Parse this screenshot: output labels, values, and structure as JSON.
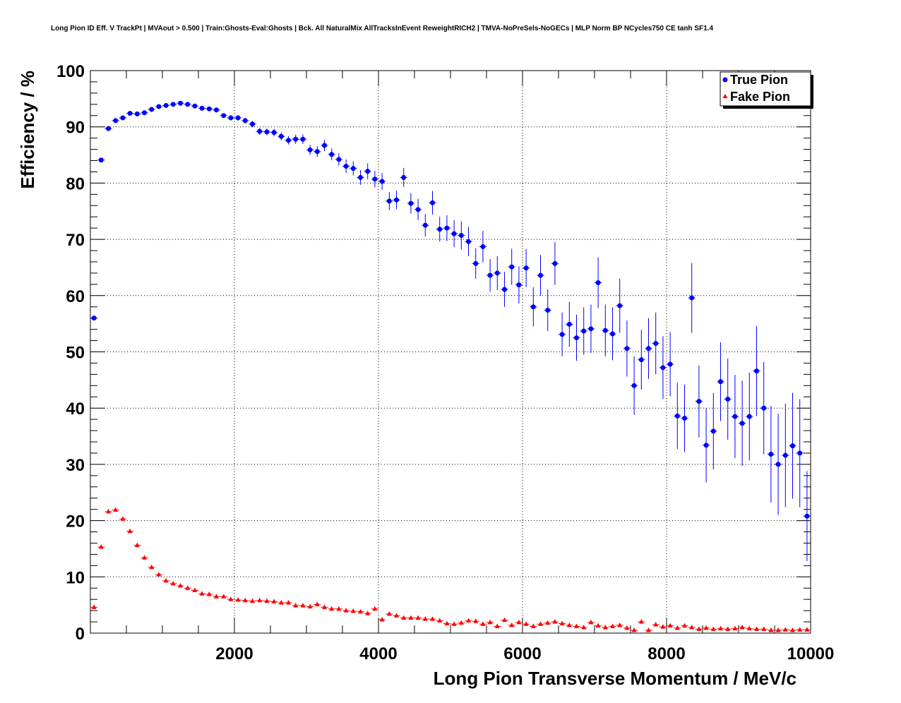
{
  "chart_data": {
    "type": "scatter",
    "title": "Long Pion ID Eff. V TrackPt | MVAout > 0.500 | Train:Ghosts-Eval:Ghosts | Bck. All NaturalMix AllTracksInEvent ReweightRICH2 | TMVA-NoPreSels-NoGECs | MLP Norm BP NCycles750 CE tanh SF1.4",
    "xlabel": "Long Pion Transverse Momentum / MeV/c",
    "ylabel": "Efficiency / %",
    "xlim": [
      0,
      10000
    ],
    "ylim": [
      0,
      100
    ],
    "grid": true,
    "legend_position": "top-right",
    "x_ticks": [
      2000,
      4000,
      6000,
      8000,
      10000
    ],
    "x_tick_labels": [
      "2000",
      "4000",
      "6000",
      "8000",
      "10000"
    ],
    "y_ticks": [
      0,
      10,
      20,
      30,
      40,
      50,
      60,
      70,
      80,
      90,
      100
    ],
    "y_tick_labels": [
      "0",
      "10",
      "20",
      "30",
      "40",
      "50",
      "60",
      "70",
      "80",
      "90",
      "100"
    ],
    "bin_width": 100,
    "series": [
      {
        "name": "True Pion",
        "marker": "circle",
        "color": "#0000ff",
        "x": [
          50,
          150,
          250,
          350,
          450,
          550,
          650,
          750,
          850,
          950,
          1050,
          1150,
          1250,
          1350,
          1450,
          1550,
          1650,
          1750,
          1850,
          1950,
          2050,
          2150,
          2250,
          2350,
          2450,
          2550,
          2650,
          2750,
          2850,
          2950,
          3050,
          3150,
          3250,
          3350,
          3450,
          3550,
          3650,
          3750,
          3850,
          3950,
          4050,
          4150,
          4250,
          4350,
          4450,
          4550,
          4650,
          4750,
          4850,
          4950,
          5050,
          5150,
          5250,
          5350,
          5450,
          5550,
          5650,
          5750,
          5850,
          5950,
          6050,
          6150,
          6250,
          6350,
          6450,
          6550,
          6650,
          6750,
          6850,
          6950,
          7050,
          7150,
          7250,
          7350,
          7450,
          7550,
          7650,
          7750,
          7850,
          7950,
          8050,
          8150,
          8250,
          8350,
          8450,
          8550,
          8650,
          8750,
          8850,
          8950,
          9050,
          9150,
          9250,
          9350,
          9450,
          9550,
          9650,
          9750,
          9850,
          9950
        ],
        "y": [
          56.0,
          84.1,
          89.7,
          91.1,
          91.6,
          92.4,
          92.3,
          92.5,
          93.1,
          93.6,
          93.8,
          94.0,
          94.2,
          94.0,
          93.7,
          93.3,
          93.2,
          93.0,
          92.0,
          91.6,
          91.6,
          91.1,
          90.5,
          89.2,
          89.1,
          89.0,
          88.3,
          87.6,
          87.8,
          87.8,
          85.9,
          85.6,
          86.7,
          85.1,
          84.2,
          83.0,
          82.6,
          81.0,
          82.1,
          80.7,
          80.3,
          76.8,
          77.0,
          81.0,
          76.4,
          75.3,
          72.5,
          76.5,
          71.8,
          72.0,
          71.0,
          70.7,
          69.6,
          65.7,
          68.7,
          63.6,
          64.0,
          61.1,
          65.1,
          61.9,
          64.9,
          58.0,
          63.6,
          57.4,
          65.7,
          53.1,
          54.9,
          52.5,
          53.7,
          54.1,
          62.3,
          53.8,
          53.2,
          58.2,
          50.6,
          44.0,
          48.6,
          50.6,
          51.5,
          47.2,
          47.8,
          38.6,
          38.2,
          59.6,
          41.2,
          33.4,
          35.9,
          44.7,
          41.6,
          38.5,
          37.3,
          38.5,
          46.6,
          40.0,
          31.8,
          30.0,
          31.6,
          33.3,
          32.0,
          20.8
        ],
        "err": [
          0.4,
          0.4,
          0.35,
          0.35,
          0.35,
          0.35,
          0.35,
          0.35,
          0.35,
          0.35,
          0.35,
          0.35,
          0.35,
          0.35,
          0.35,
          0.35,
          0.35,
          0.4,
          0.4,
          0.45,
          0.5,
          0.5,
          0.55,
          0.6,
          0.6,
          0.65,
          0.7,
          0.75,
          0.8,
          0.85,
          0.9,
          0.95,
          1.0,
          1.05,
          1.1,
          1.2,
          1.25,
          1.3,
          1.4,
          1.45,
          1.5,
          1.6,
          1.65,
          1.7,
          1.8,
          1.9,
          2.0,
          2.1,
          2.2,
          2.3,
          2.4,
          2.5,
          2.6,
          2.7,
          2.8,
          2.9,
          3.0,
          3.1,
          3.2,
          3.3,
          3.4,
          3.5,
          3.6,
          3.7,
          3.8,
          3.9,
          4.0,
          4.1,
          4.2,
          4.3,
          4.5,
          4.6,
          4.7,
          4.8,
          5.0,
          5.2,
          5.3,
          5.4,
          5.5,
          5.6,
          5.7,
          5.9,
          6.0,
          6.2,
          6.4,
          6.6,
          6.8,
          7.0,
          7.2,
          7.4,
          7.6,
          7.8,
          8.0,
          8.2,
          8.6,
          9.0,
          9.2,
          9.4,
          9.6,
          8.0
        ]
      },
      {
        "name": "Fake Pion",
        "marker": "triangle",
        "color": "#ff0000",
        "x": [
          50,
          150,
          250,
          350,
          450,
          550,
          650,
          750,
          850,
          950,
          1050,
          1150,
          1250,
          1350,
          1450,
          1550,
          1650,
          1750,
          1850,
          1950,
          2050,
          2150,
          2250,
          2350,
          2450,
          2550,
          2650,
          2750,
          2850,
          2950,
          3050,
          3150,
          3250,
          3350,
          3450,
          3550,
          3650,
          3750,
          3850,
          3950,
          4050,
          4150,
          4250,
          4350,
          4450,
          4550,
          4650,
          4750,
          4850,
          4950,
          5050,
          5150,
          5250,
          5350,
          5450,
          5550,
          5650,
          5750,
          5850,
          5950,
          6050,
          6150,
          6250,
          6350,
          6450,
          6550,
          6650,
          6750,
          6850,
          6950,
          7050,
          7150,
          7250,
          7350,
          7450,
          7550,
          7650,
          7750,
          7850,
          7950,
          8050,
          8150,
          8250,
          8350,
          8450,
          8550,
          8650,
          8750,
          8850,
          8950,
          9050,
          9150,
          9250,
          9350,
          9450,
          9550,
          9650,
          9750,
          9850,
          9950
        ],
        "y": [
          4.6,
          15.3,
          21.6,
          21.9,
          20.3,
          18.1,
          15.6,
          13.4,
          11.7,
          10.4,
          9.3,
          8.8,
          8.4,
          8.0,
          7.6,
          7.0,
          6.9,
          6.5,
          6.5,
          6.0,
          5.9,
          5.8,
          5.7,
          5.8,
          5.7,
          5.6,
          5.4,
          5.4,
          4.9,
          4.9,
          4.7,
          5.1,
          4.6,
          4.3,
          4.3,
          4.0,
          3.9,
          3.8,
          3.5,
          4.3,
          2.4,
          3.4,
          3.1,
          2.7,
          2.7,
          2.7,
          2.5,
          2.5,
          2.2,
          1.7,
          1.6,
          1.8,
          2.2,
          2.1,
          1.6,
          1.9,
          1.2,
          2.3,
          1.4,
          1.9,
          1.6,
          1.2,
          1.6,
          1.8,
          2.0,
          1.7,
          1.4,
          1.2,
          1.0,
          1.9,
          1.3,
          1.0,
          1.2,
          1.4,
          0.9,
          0.5,
          2.0,
          0.5,
          1.5,
          1.1,
          1.3,
          0.9,
          1.3,
          1.0,
          0.7,
          0.9,
          0.7,
          0.8,
          0.7,
          0.8,
          1.0,
          0.8,
          0.7,
          0.7,
          0.5,
          0.5,
          0.6,
          0.5,
          0.6,
          0.6
        ],
        "err": [
          0.2,
          0.2,
          0.2,
          0.2,
          0.2,
          0.2,
          0.2,
          0.2,
          0.2,
          0.15,
          0.15,
          0.15,
          0.15,
          0.15,
          0.15,
          0.15,
          0.15,
          0.15,
          0.15,
          0.15,
          0.15,
          0.15,
          0.15,
          0.15,
          0.15,
          0.15,
          0.15,
          0.15,
          0.15,
          0.15,
          0.15,
          0.15,
          0.15,
          0.15,
          0.15,
          0.15,
          0.15,
          0.15,
          0.15,
          0.2,
          0.2,
          0.2,
          0.2,
          0.2,
          0.2,
          0.2,
          0.2,
          0.2,
          0.2,
          0.2,
          0.2,
          0.2,
          0.2,
          0.2,
          0.2,
          0.2,
          0.2,
          0.2,
          0.2,
          0.2,
          0.2,
          0.2,
          0.2,
          0.2,
          0.2,
          0.2,
          0.2,
          0.2,
          0.2,
          0.2,
          0.2,
          0.2,
          0.2,
          0.2,
          0.2,
          0.2,
          0.2,
          0.2,
          0.2,
          0.2,
          0.2,
          0.2,
          0.2,
          0.2,
          0.2,
          0.2,
          0.2,
          0.2,
          0.2,
          0.2,
          0.2,
          0.2,
          0.2,
          0.2,
          0.2,
          0.2,
          0.2,
          0.2,
          0.2,
          0.2
        ]
      }
    ]
  }
}
